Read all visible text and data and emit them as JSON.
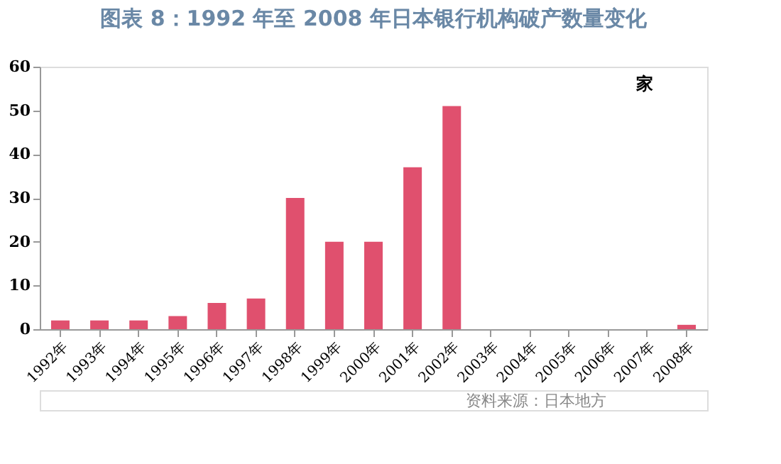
{
  "chart_data": {
    "type": "bar",
    "title": "图表 8：1992 年至 2008 年日本银行机构破产数量变化",
    "categories": [
      "1992年",
      "1993年",
      "1994年",
      "1995年",
      "1996年",
      "1997年",
      "1998年",
      "1999年",
      "2000年",
      "2001年",
      "2002年",
      "2003年",
      "2004年",
      "2005年",
      "2006年",
      "2007年",
      "2008年"
    ],
    "values": [
      2,
      2,
      2,
      3,
      6,
      7,
      30,
      20,
      20,
      37,
      51,
      0,
      0,
      0,
      0,
      0,
      1
    ],
    "color": "#e0506e",
    "ylim": [
      0,
      60
    ],
    "yticks": [
      0,
      10,
      20,
      30,
      40,
      50,
      60
    ],
    "grid": false,
    "annotations": [
      "家",
      "资料来源：日本地方"
    ]
  }
}
